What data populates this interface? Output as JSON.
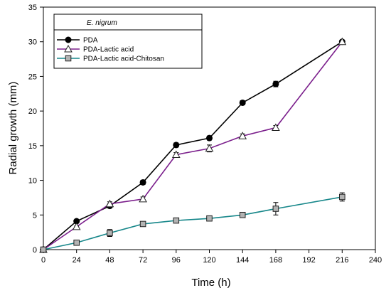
{
  "chart_data": {
    "type": "line",
    "legend_title": "E. nigrum",
    "xlabel": "Time (h)",
    "ylabel": "Radial growth (mm)",
    "x": [
      0,
      24,
      48,
      72,
      96,
      120,
      144,
      168,
      216
    ],
    "xlim": [
      0,
      240
    ],
    "ylim": [
      0,
      35
    ],
    "xticks": [
      0,
      24,
      48,
      72,
      96,
      120,
      144,
      168,
      192,
      216,
      240
    ],
    "yticks": [
      0,
      5,
      10,
      15,
      20,
      25,
      30,
      35
    ],
    "grid": false,
    "legend_position": "top-left",
    "series": [
      {
        "name": "PDA",
        "color": "#000000",
        "marker": "circle-filled",
        "values": [
          0,
          4.1,
          6.3,
          9.7,
          15.1,
          16.1,
          21.2,
          23.9,
          30.0
        ],
        "errors": [
          0,
          0.15,
          0.3,
          0.3,
          0.3,
          0.3,
          0.3,
          0.4,
          0.2
        ]
      },
      {
        "name": "PDA-Lactic acid",
        "color": "#7b1f8c",
        "marker": "triangle-open",
        "values": [
          0,
          3.3,
          6.6,
          7.3,
          13.7,
          14.6,
          16.4,
          17.6,
          30.0
        ],
        "errors": [
          0,
          0.1,
          0.3,
          0.3,
          0.3,
          0.5,
          0.3,
          0.3,
          0.2
        ]
      },
      {
        "name": "PDA-Lactic acid-Chitosan",
        "color": "#17878a",
        "marker": "square-gray",
        "values": [
          0,
          1.0,
          2.4,
          3.7,
          4.2,
          4.5,
          5.0,
          5.9,
          7.6
        ],
        "errors": [
          0,
          0.1,
          0.5,
          0.3,
          0.2,
          0.3,
          0.2,
          0.9,
          0.6
        ]
      }
    ]
  }
}
